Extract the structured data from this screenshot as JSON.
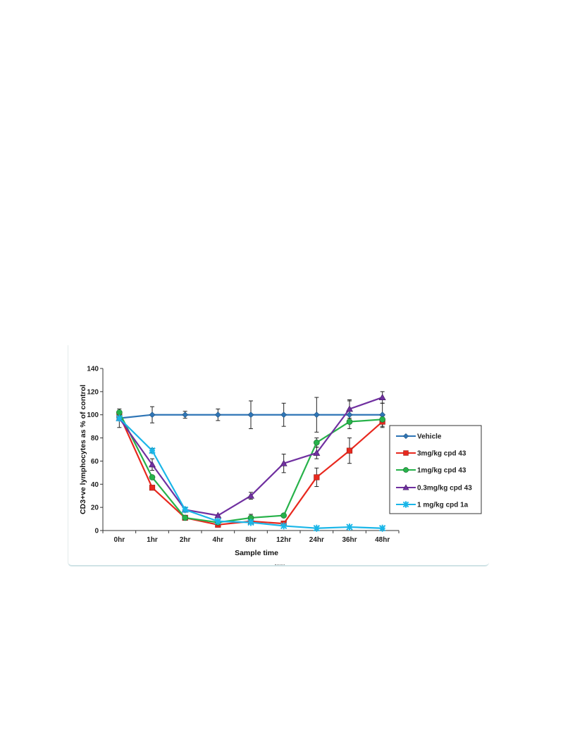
{
  "chart_data": {
    "type": "line",
    "title": "",
    "xlabel": "Sample time",
    "ylabel": "CD3+ve lymphocytes as % of control",
    "categories": [
      "0hr",
      "1hr",
      "2hr",
      "4hr",
      "8hr",
      "12hr",
      "24hr",
      "36hr",
      "48hr"
    ],
    "ylim": [
      0,
      140
    ],
    "yticks": [
      0,
      20,
      40,
      60,
      80,
      100,
      120,
      140
    ],
    "grid": false,
    "legend_position": "right",
    "series": [
      {
        "name": "Vehicle",
        "color": "#2e75b6",
        "marker": "diamond",
        "values": [
          97,
          100,
          100,
          100,
          100,
          100,
          100,
          100,
          100
        ],
        "errors": [
          8,
          7,
          3,
          5,
          12,
          10,
          15,
          12,
          10
        ]
      },
      {
        "name": "3mg/kg cpd 43",
        "color": "#e8281e",
        "marker": "square",
        "values": [
          100,
          37,
          11,
          5,
          8,
          6,
          46,
          69,
          94
        ],
        "errors": [
          null,
          null,
          null,
          null,
          null,
          null,
          8,
          11,
          5
        ]
      },
      {
        "name": "1mg/kg cpd 43",
        "color": "#27b24a",
        "marker": "circle",
        "values": [
          102,
          46,
          11,
          7,
          11,
          13,
          76,
          94,
          96
        ],
        "errors": [
          null,
          null,
          null,
          null,
          3,
          null,
          4,
          null,
          null
        ]
      },
      {
        "name": "0.3mg/kg cpd 43",
        "color": "#7030a0",
        "marker": "triangle",
        "values": [
          97,
          57,
          18,
          13,
          30,
          58,
          67,
          105,
          115
        ],
        "errors": [
          null,
          5,
          null,
          null,
          3,
          8,
          5,
          8,
          5
        ]
      },
      {
        "name": "1 mg/kg  cpd 1a",
        "color": "#1ab6e8",
        "marker": "star",
        "values": [
          97,
          69,
          18,
          8,
          7,
          4,
          2,
          3,
          2
        ],
        "errors": [
          null,
          2,
          2,
          null,
          null,
          null,
          null,
          null,
          null
        ]
      }
    ]
  }
}
